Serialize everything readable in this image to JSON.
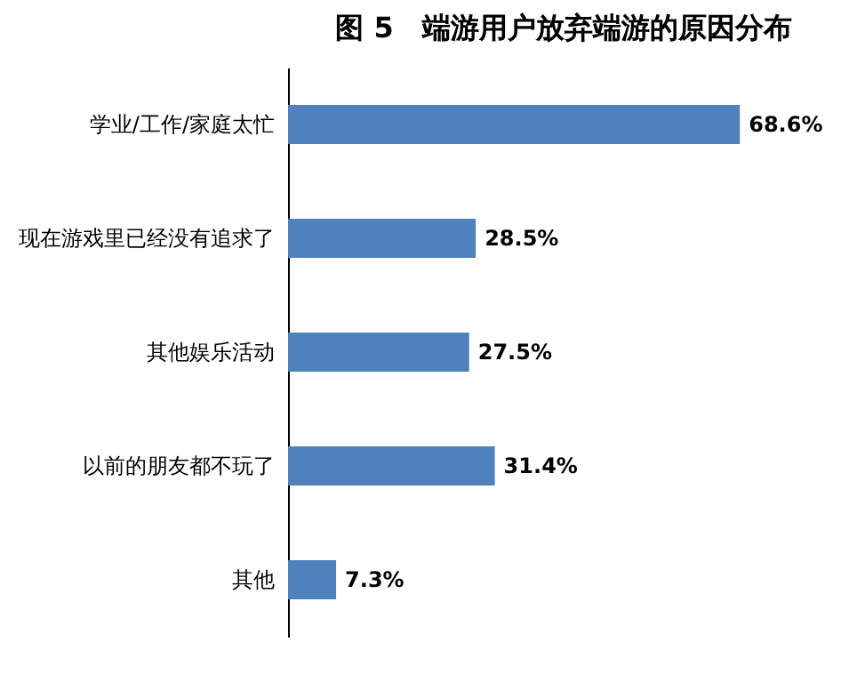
{
  "chart_data": {
    "type": "bar",
    "orientation": "horizontal",
    "title": "图 5　端游用户放弃端游的原因分布",
    "categories": [
      "学业/工作/家庭太忙",
      "现在游戏里已经没有追求了",
      "其他娱乐活动",
      "以前的朋友都不玩了",
      "其他"
    ],
    "values": [
      68.6,
      28.5,
      27.5,
      31.4,
      7.3
    ],
    "value_labels": [
      "68.6%",
      "28.5%",
      "27.5%",
      "31.4%",
      "7.3%"
    ],
    "color": "#4f81bd",
    "grid": false
  }
}
